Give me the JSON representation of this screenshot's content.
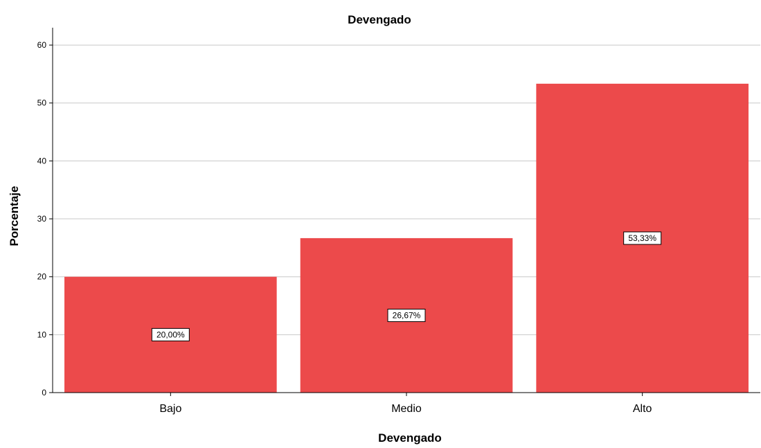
{
  "chart_data": {
    "type": "bar",
    "title": "Devengado",
    "xlabel": "Devengado",
    "ylabel": "Porcentaje",
    "categories": [
      "Bajo",
      "Medio",
      "Alto"
    ],
    "values": [
      20.0,
      26.67,
      53.33
    ],
    "data_labels": [
      "20,00%",
      "26,67%",
      "53,33%"
    ],
    "ylim": [
      0,
      63
    ],
    "yticks": [
      0,
      10,
      20,
      30,
      40,
      50,
      60
    ],
    "grid": "horizontal",
    "legend": "none",
    "bar_color": "#EC4A4B"
  }
}
